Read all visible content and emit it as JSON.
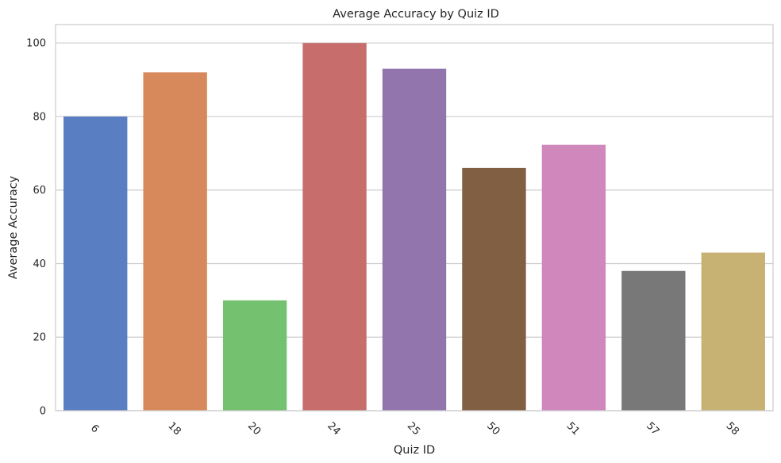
{
  "chart_data": {
    "type": "bar",
    "title": "Average Accuracy by Quiz ID",
    "xlabel": "Quiz ID",
    "ylabel": "Average Accuracy",
    "categories": [
      "6",
      "18",
      "20",
      "24",
      "25",
      "50",
      "51",
      "57",
      "58"
    ],
    "values": [
      80,
      92,
      30,
      100,
      93,
      66,
      72.3,
      38,
      43
    ],
    "colors": [
      "#5a7ec2",
      "#d8895b",
      "#74c16f",
      "#c76d6c",
      "#9375ad",
      "#815f43",
      "#d087bc",
      "#787878",
      "#c7b274"
    ],
    "ylim": [
      0,
      105
    ],
    "yticks": [
      0,
      20,
      40,
      60,
      80,
      100
    ],
    "grid": true,
    "gridColor": "#cccccc",
    "frameColor": "#cccccc"
  }
}
